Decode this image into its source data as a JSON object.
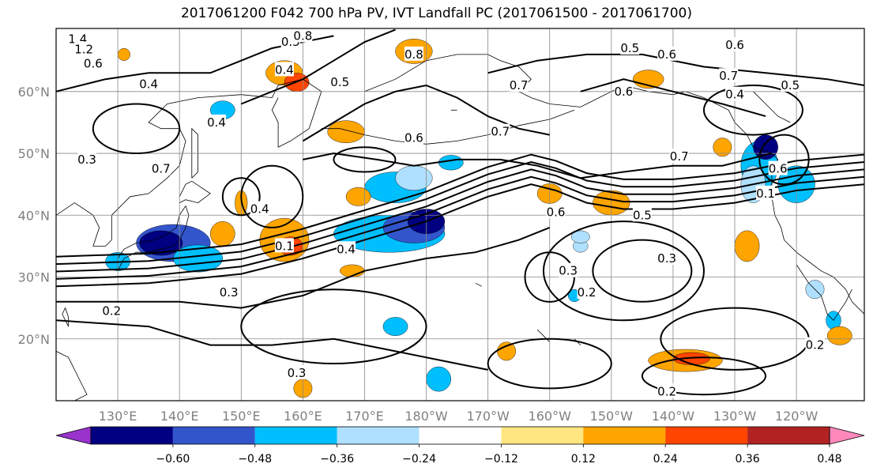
{
  "title": "2017061200 F042 700 hPa PV, IVT Landfall PC (2017061500 - 2017061700)",
  "lat_labels": [
    "60°N",
    "50°N",
    "40°N",
    "30°N",
    "20°N"
  ],
  "lon_labels": [
    "130°E",
    "140°E",
    "150°E",
    "160°E",
    "170°E",
    "180°W",
    "170°W",
    "160°W",
    "150°W",
    "140°W",
    "130°W",
    "120°W"
  ],
  "colorbar": {
    "levels": [
      "−0.60",
      "−0.48",
      "−0.36",
      "−0.24",
      "−0.12",
      "0.12",
      "0.24",
      "0.36",
      "0.48",
      "0.60"
    ],
    "colors": [
      "#9933cc",
      "#000080",
      "#3355cc",
      "#00bfff",
      "#b0e0ff",
      "#ffffff",
      "#ffe680",
      "#ffa500",
      "#ff4500",
      "#b22222",
      "#ff88bb"
    ]
  },
  "contour_labels": [
    {
      "text": "1.4",
      "lon": 123.5,
      "lat": 68.5
    },
    {
      "text": "1.2",
      "lon": 124.5,
      "lat": 66.8
    },
    {
      "text": "0.6",
      "lon": 126,
      "lat": 64.5
    },
    {
      "text": "0.4",
      "lon": 135,
      "lat": 61.2
    },
    {
      "text": "0.4",
      "lon": 146,
      "lat": 55
    },
    {
      "text": "0.7",
      "lon": 137,
      "lat": 47.5
    },
    {
      "text": "0.3",
      "lon": 125,
      "lat": 49
    },
    {
      "text": "0.4",
      "lon": 153,
      "lat": 41
    },
    {
      "text": "0.5",
      "lon": 158,
      "lat": 68
    },
    {
      "text": "0.8",
      "lon": 160,
      "lat": 69
    },
    {
      "text": "0.4",
      "lon": 157,
      "lat": 63.5
    },
    {
      "text": "0.5",
      "lon": 166,
      "lat": 61.5
    },
    {
      "text": "0.8",
      "lon": 178,
      "lat": 66
    },
    {
      "text": "0.7",
      "lon": 195,
      "lat": 61
    },
    {
      "text": "0.7",
      "lon": 192,
      "lat": 53.5
    },
    {
      "text": "0.6",
      "lon": 178,
      "lat": 52.5
    },
    {
      "text": "0.6",
      "lon": 201,
      "lat": 40.5
    },
    {
      "text": "0.5",
      "lon": 215,
      "lat": 40
    },
    {
      "text": "0.5",
      "lon": 213,
      "lat": 67
    },
    {
      "text": "0.6",
      "lon": 219,
      "lat": 66
    },
    {
      "text": "0.6",
      "lon": 230,
      "lat": 67.5
    },
    {
      "text": "0.7",
      "lon": 229,
      "lat": 62.5
    },
    {
      "text": "0.5",
      "lon": 239,
      "lat": 61
    },
    {
      "text": "0.4",
      "lon": 230,
      "lat": 59.5
    },
    {
      "text": "0.6",
      "lon": 212,
      "lat": 60
    },
    {
      "text": "0.7",
      "lon": 221,
      "lat": 49.5
    },
    {
      "text": "0.6",
      "lon": 237,
      "lat": 47.5
    },
    {
      "text": "0.1",
      "lon": 235,
      "lat": 43.5
    },
    {
      "text": "0.3",
      "lon": 219,
      "lat": 33
    },
    {
      "text": "0.3",
      "lon": 203,
      "lat": 31
    },
    {
      "text": "0.2",
      "lon": 206,
      "lat": 27.5
    },
    {
      "text": "0.4",
      "lon": 167,
      "lat": 34.5
    },
    {
      "text": "0.1",
      "lon": 157,
      "lat": 35
    },
    {
      "text": "0.3",
      "lon": 148,
      "lat": 27.5
    },
    {
      "text": "0.2",
      "lon": 129,
      "lat": 24.5
    },
    {
      "text": "0.3",
      "lon": 159,
      "lat": 14.5
    },
    {
      "text": "0.2",
      "lon": 219,
      "lat": 11.5
    },
    {
      "text": "0.2",
      "lon": 243,
      "lat": 19
    }
  ]
}
